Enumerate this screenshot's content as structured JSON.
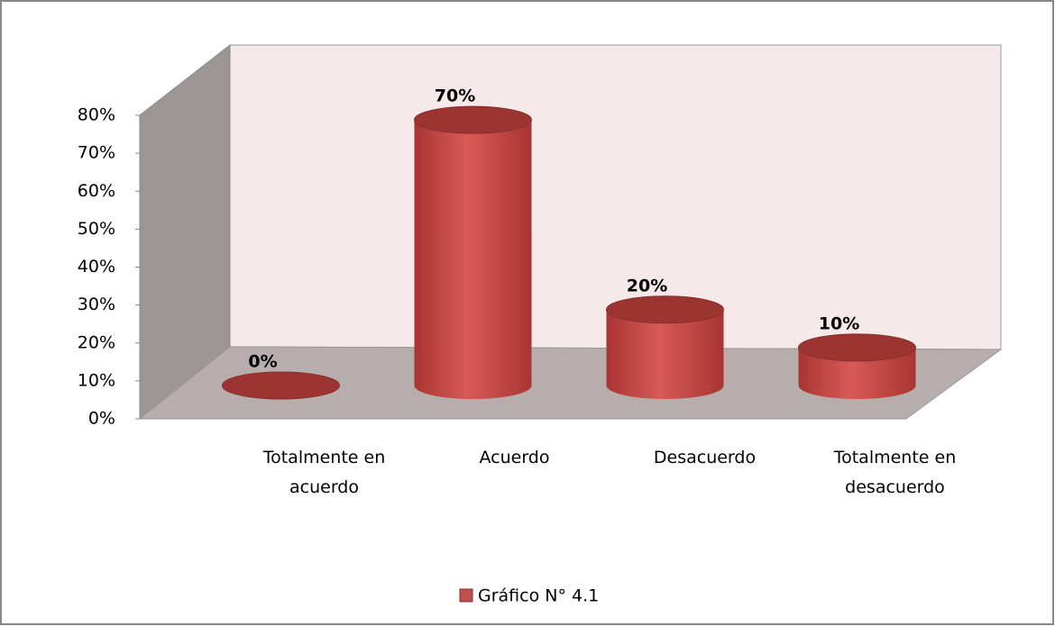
{
  "chart_data": {
    "type": "cylinder",
    "categories": [
      "Totalmente en acuerdo",
      "Acuerdo",
      "Desacuerdo",
      "Totalmente en desacuerdo"
    ],
    "series": [
      {
        "name": "Gráfico N° 4.1",
        "color": "#c0504d",
        "values": [
          0,
          70,
          20,
          10
        ],
        "value_labels": [
          "0%",
          "70%",
          "20%",
          "10%"
        ]
      }
    ],
    "ylim": [
      0,
      80
    ],
    "yticks": [
      {
        "value": 0,
        "label": "0%"
      },
      {
        "value": 10,
        "label": "10%"
      },
      {
        "value": 20,
        "label": "20%"
      },
      {
        "value": 30,
        "label": "30%"
      },
      {
        "value": 40,
        "label": "40%"
      },
      {
        "value": 50,
        "label": "50%"
      },
      {
        "value": 60,
        "label": "60%"
      },
      {
        "value": 70,
        "label": "70%"
      },
      {
        "value": 80,
        "label": "80%"
      }
    ],
    "legend": "bottom"
  }
}
